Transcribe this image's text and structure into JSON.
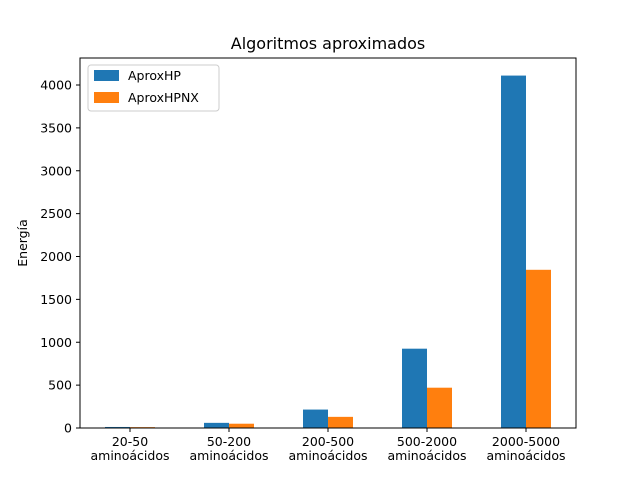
{
  "chart_data": {
    "type": "bar",
    "title": "Algoritmos aproximados",
    "xlabel": "",
    "ylabel": "Energía",
    "categories": [
      [
        "20-50",
        "aminoácidos"
      ],
      [
        "50-200",
        "aminoácidos"
      ],
      [
        "200-500",
        "aminoácidos"
      ],
      [
        "500-2000",
        "aminoácidos"
      ],
      [
        "2000-5000",
        "aminoácidos"
      ]
    ],
    "series": [
      {
        "name": "AproxHP",
        "color": "#1f77b4",
        "values": [
          12,
          60,
          215,
          925,
          4110
        ]
      },
      {
        "name": "AproxHPNX",
        "color": "#ff7f0e",
        "values": [
          10,
          50,
          130,
          470,
          1845
        ]
      }
    ],
    "ylim": [
      0,
      4315
    ],
    "yticks": [
      0,
      500,
      1000,
      1500,
      2000,
      2500,
      3000,
      3500,
      4000
    ],
    "legend": "top-left",
    "grid": false
  }
}
